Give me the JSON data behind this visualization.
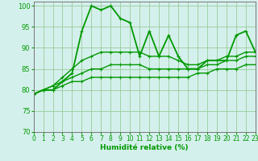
{
  "xlabel": "Humidité relative (%)",
  "background_color": "#d4f0ec",
  "grid_color": "#99cc99",
  "line_color": "#009900",
  "xlim": [
    0,
    23
  ],
  "ylim": [
    70,
    101
  ],
  "yticks": [
    70,
    75,
    80,
    85,
    90,
    95,
    100
  ],
  "xticks": [
    0,
    1,
    2,
    3,
    4,
    5,
    6,
    7,
    8,
    9,
    10,
    11,
    12,
    13,
    14,
    15,
    16,
    17,
    18,
    19,
    20,
    21,
    22,
    23
  ],
  "series": [
    [
      79,
      80,
      80,
      82,
      84,
      94,
      100,
      99,
      100,
      97,
      96,
      88,
      94,
      88,
      93,
      88,
      85,
      85,
      87,
      87,
      87,
      93,
      94,
      89
    ],
    [
      79,
      80,
      81,
      83,
      85,
      87,
      88,
      89,
      89,
      89,
      89,
      89,
      88,
      88,
      88,
      87,
      86,
      86,
      87,
      87,
      88,
      88,
      89,
      89
    ],
    [
      79,
      80,
      81,
      82,
      83,
      84,
      85,
      85,
      86,
      86,
      86,
      86,
      85,
      85,
      85,
      85,
      85,
      85,
      86,
      86,
      87,
      87,
      88,
      88
    ],
    [
      79,
      80,
      80,
      81,
      82,
      82,
      83,
      83,
      83,
      83,
      83,
      83,
      83,
      83,
      83,
      83,
      83,
      84,
      84,
      85,
      85,
      85,
      86,
      86
    ]
  ],
  "series_lw": [
    1.3,
    1.0,
    1.0,
    1.0
  ]
}
